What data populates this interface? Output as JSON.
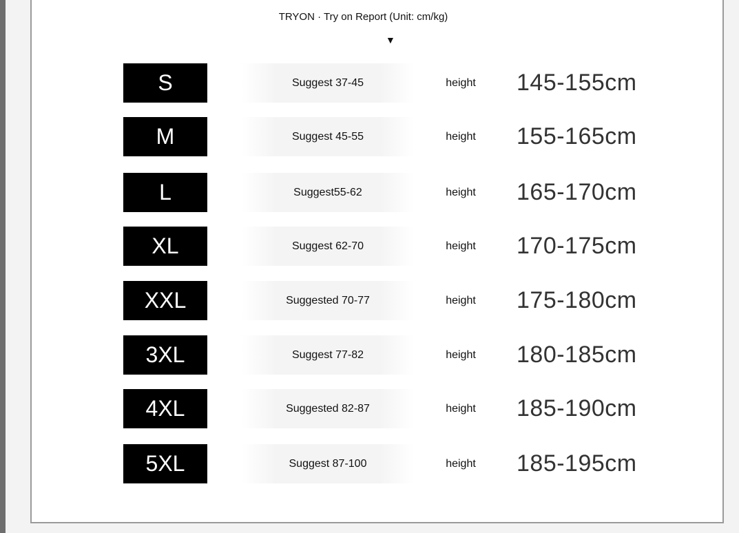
{
  "title": "TRYON · Try on Report (Unit: cm/kg)",
  "arrow_icon": "down-triangle-icon",
  "rows": [
    {
      "size": "S",
      "suggest": "Suggest 37-45",
      "height_label": "height",
      "height": "145-155cm"
    },
    {
      "size": "M",
      "suggest": "Suggest 45-55",
      "height_label": "height",
      "height": "155-165cm"
    },
    {
      "size": "L",
      "suggest": "Suggest55-62",
      "height_label": "height",
      "height": "165-170cm"
    },
    {
      "size": "XL",
      "suggest": "Suggest 62-70",
      "height_label": "height",
      "height": "170-175cm"
    },
    {
      "size": "XXL",
      "suggest": "Suggested  70-77",
      "height_label": "height",
      "height": "175-180cm"
    },
    {
      "size": "3XL",
      "suggest": "Suggest 77-82",
      "height_label": "height",
      "height": "180-185cm"
    },
    {
      "size": "4XL",
      "suggest": "Suggested  82-87",
      "height_label": "height",
      "height": "185-190cm"
    },
    {
      "size": "5XL",
      "suggest": "Suggest 87-100",
      "height_label": "height",
      "height": "185-195cm"
    }
  ]
}
